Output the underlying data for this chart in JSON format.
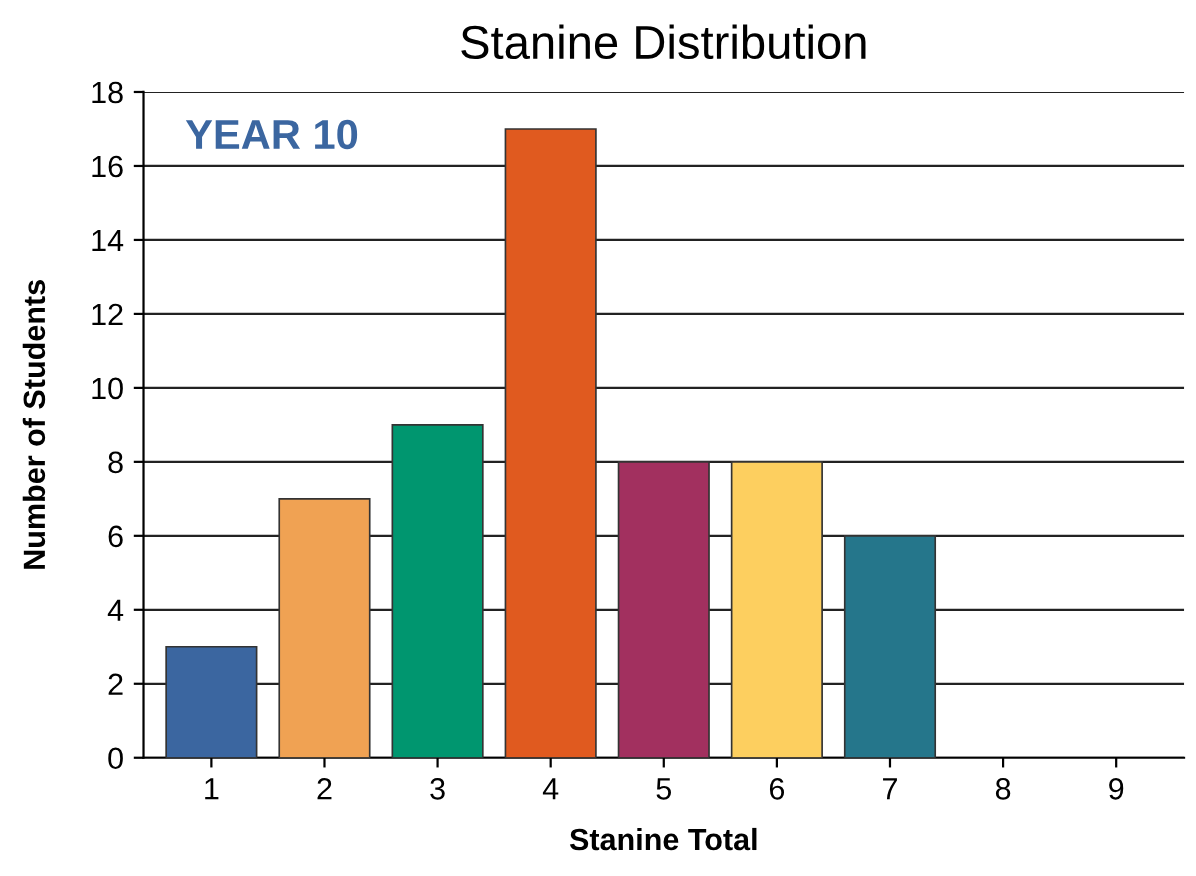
{
  "chart_data": {
    "type": "bar",
    "title": "Stanine Distribution",
    "xlabel": "Stanine Total",
    "ylabel": "Number of Students",
    "categories": [
      "1",
      "2",
      "3",
      "4",
      "5",
      "6",
      "7",
      "8",
      "9"
    ],
    "values": [
      3,
      7,
      9,
      17,
      8,
      8,
      6,
      0,
      0
    ],
    "colors": [
      "#3b66a0",
      "#f0a253",
      "#00966f",
      "#e05a1f",
      "#a2305f",
      "#fdcf5f",
      "#25768b",
      null,
      null
    ],
    "ylim": [
      0,
      18
    ],
    "yticks": [
      0,
      2,
      4,
      6,
      8,
      10,
      12,
      14,
      16,
      18
    ],
    "grid": "y",
    "annotations": [
      "YEAR 10"
    ]
  }
}
